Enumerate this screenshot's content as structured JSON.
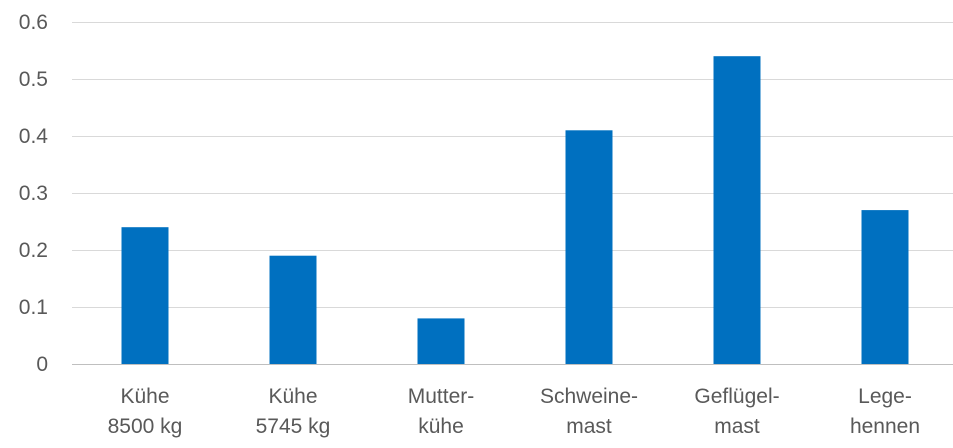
{
  "chart_data": {
    "type": "bar",
    "categories": [
      [
        "Kühe",
        "8500 kg"
      ],
      [
        "Kühe",
        "5745 kg"
      ],
      [
        "Mutter-",
        "kühe"
      ],
      [
        "Schweine-",
        "mast"
      ],
      [
        "Geflügel-",
        "mast"
      ],
      [
        "Lege-",
        "hennen"
      ]
    ],
    "values": [
      0.24,
      0.19,
      0.08,
      0.41,
      0.54,
      0.27
    ],
    "y_ticks": [
      "0",
      "0.1",
      "0.2",
      "0.3",
      "0.4",
      "0.5",
      "0.6"
    ],
    "ylim": [
      0,
      0.6
    ],
    "grid": true,
    "legend": "none",
    "title": "",
    "xlabel": "",
    "ylabel": "",
    "colors": {
      "bar": "#0070C0",
      "grid": "#D9D9D9",
      "axis": "#BFBFBF",
      "text": "#595959"
    }
  }
}
